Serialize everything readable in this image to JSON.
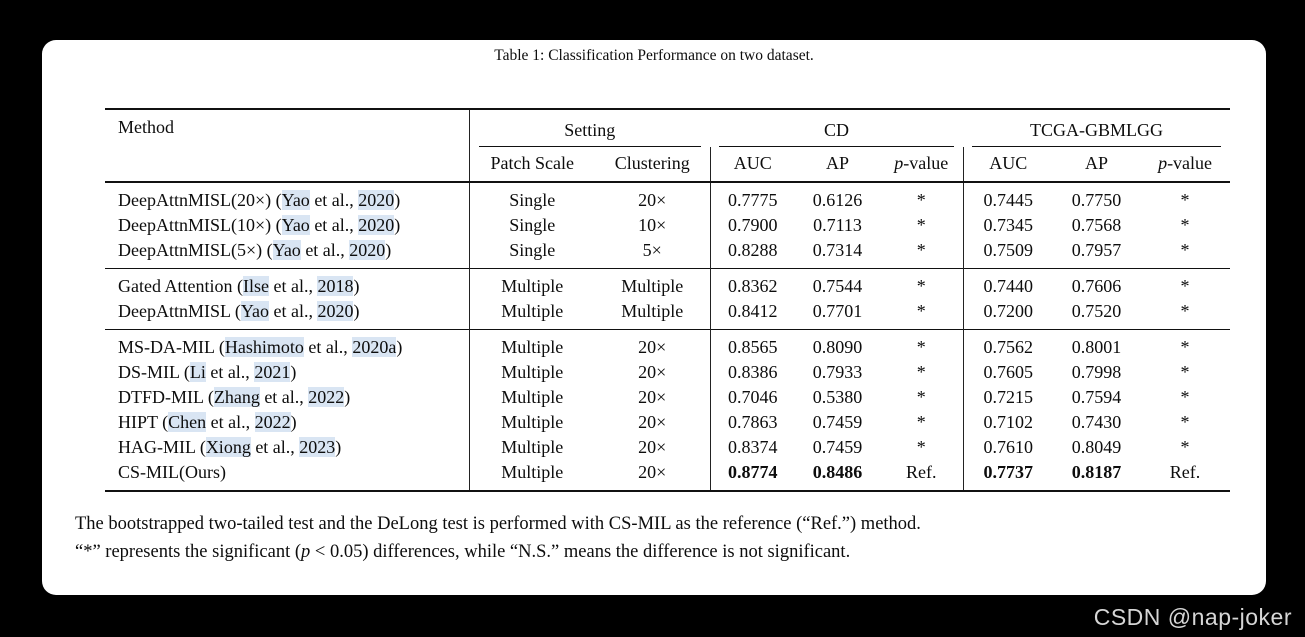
{
  "page": {
    "watermark": "CSDN @nap-joker"
  },
  "caption": "Table 1: Classification Performance on two dataset.",
  "header": {
    "method": "Method",
    "groups": [
      {
        "label": "Setting",
        "cols": [
          [
            {
              "t": "Patch Scale"
            }
          ],
          [
            {
              "t": "Clustering"
            }
          ]
        ]
      },
      {
        "label": "CD",
        "cols": [
          [
            {
              "t": "AUC"
            }
          ],
          [
            {
              "t": "AP"
            }
          ],
          [
            {
              "t": "p",
              "i": true
            },
            {
              "t": "-value"
            }
          ]
        ]
      },
      {
        "label": "TCGA-GBMLGG",
        "cols": [
          [
            {
              "t": "AUC"
            }
          ],
          [
            {
              "t": "AP"
            }
          ],
          [
            {
              "t": "p",
              "i": true
            },
            {
              "t": "-value"
            }
          ]
        ]
      }
    ]
  },
  "groups": [
    {
      "rows": [
        {
          "method": [
            {
              "t": "DeepAttnMISL(20×) ("
            },
            {
              "t": "Yao",
              "hl": true
            },
            {
              "t": " et al., "
            },
            {
              "t": "2020",
              "hl": true
            },
            {
              "t": ")"
            }
          ],
          "cells": [
            "Single",
            "20×",
            "0.7775",
            "0.6126",
            "*",
            "0.7445",
            "0.7750",
            "*"
          ],
          "bold": []
        },
        {
          "method": [
            {
              "t": "DeepAttnMISL(10×) ("
            },
            {
              "t": "Yao",
              "hl": true
            },
            {
              "t": " et al., "
            },
            {
              "t": "2020",
              "hl": true
            },
            {
              "t": ")"
            }
          ],
          "cells": [
            "Single",
            "10×",
            "0.7900",
            "0.7113",
            "*",
            "0.7345",
            "0.7568",
            "*"
          ],
          "bold": []
        },
        {
          "method": [
            {
              "t": "DeepAttnMISL(5×) ("
            },
            {
              "t": "Yao",
              "hl": true
            },
            {
              "t": " et al., "
            },
            {
              "t": "2020",
              "hl": true
            },
            {
              "t": ")"
            }
          ],
          "cells": [
            "Single",
            "5×",
            "0.8288",
            "0.7314",
            "*",
            "0.7509",
            "0.7957",
            "*"
          ],
          "bold": []
        }
      ]
    },
    {
      "rows": [
        {
          "method": [
            {
              "t": "Gated Attention ("
            },
            {
              "t": "Ilse",
              "hl": true
            },
            {
              "t": " et al., "
            },
            {
              "t": "2018",
              "hl": true
            },
            {
              "t": ")"
            }
          ],
          "cells": [
            "Multiple",
            "Multiple",
            "0.8362",
            "0.7544",
            "*",
            "0.7440",
            "0.7606",
            "*"
          ],
          "bold": []
        },
        {
          "method": [
            {
              "t": "DeepAttnMISL ("
            },
            {
              "t": "Yao",
              "hl": true
            },
            {
              "t": " et al., "
            },
            {
              "t": "2020",
              "hl": true
            },
            {
              "t": ")"
            }
          ],
          "cells": [
            "Multiple",
            "Multiple",
            "0.8412",
            "0.7701",
            "*",
            "0.7200",
            "0.7520",
            "*"
          ],
          "bold": []
        }
      ]
    },
    {
      "rows": [
        {
          "method": [
            {
              "t": "MS-DA-MIL ("
            },
            {
              "t": "Hashimoto",
              "hl": true
            },
            {
              "t": " et al., "
            },
            {
              "t": "2020a",
              "hl": true
            },
            {
              "t": ")"
            }
          ],
          "cells": [
            "Multiple",
            "20×",
            "0.8565",
            "0.8090",
            "*",
            "0.7562",
            "0.8001",
            "*"
          ],
          "bold": []
        },
        {
          "method": [
            {
              "t": "DS-MIL ("
            },
            {
              "t": "Li",
              "hl": true
            },
            {
              "t": " et al., "
            },
            {
              "t": "2021",
              "hl": true
            },
            {
              "t": ")"
            }
          ],
          "cells": [
            "Multiple",
            "20×",
            "0.8386",
            "0.7933",
            "*",
            "0.7605",
            "0.7998",
            "*"
          ],
          "bold": []
        },
        {
          "method": [
            {
              "t": "DTFD-MIL ("
            },
            {
              "t": "Zhang",
              "hl": true
            },
            {
              "t": " et al., "
            },
            {
              "t": "2022",
              "hl": true
            },
            {
              "t": ")"
            }
          ],
          "cells": [
            "Multiple",
            "20×",
            "0.7046",
            "0.5380",
            "*",
            "0.7215",
            "0.7594",
            "*"
          ],
          "bold": []
        },
        {
          "method": [
            {
              "t": "HIPT ("
            },
            {
              "t": "Chen",
              "hl": true
            },
            {
              "t": " et al., "
            },
            {
              "t": "2022",
              "hl": true
            },
            {
              "t": ")"
            }
          ],
          "cells": [
            "Multiple",
            "20×",
            "0.7863",
            "0.7459",
            "*",
            "0.7102",
            "0.7430",
            "*"
          ],
          "bold": []
        },
        {
          "method": [
            {
              "t": "HAG-MIL ("
            },
            {
              "t": "Xiong",
              "hl": true
            },
            {
              "t": " et al., "
            },
            {
              "t": "2023",
              "hl": true
            },
            {
              "t": ")"
            }
          ],
          "cells": [
            "Multiple",
            "20×",
            "0.8374",
            "0.7459",
            "*",
            "0.7610",
            "0.8049",
            "*"
          ],
          "bold": []
        },
        {
          "method": [
            {
              "t": "CS-MIL(Ours)"
            }
          ],
          "cells": [
            "Multiple",
            "20×",
            "0.8774",
            "0.8486",
            "Ref.",
            "0.7737",
            "0.8187",
            "Ref."
          ],
          "bold": [
            2,
            3,
            5,
            6
          ]
        }
      ]
    }
  ],
  "notes": [
    [
      {
        "t": "The bootstrapped two-tailed test and the DeLong test is performed with CS-MIL as the reference (“Ref.”) method."
      }
    ],
    [
      {
        "t": "“*” represents the significant ("
      },
      {
        "t": "p",
        "i": true
      },
      {
        "t": " < 0.05) differences, while “N.S.” means the difference is not significant."
      }
    ]
  ],
  "colors": {
    "page_bg": "#000000",
    "card_bg": "#ffffff",
    "rule": "#111111",
    "cite_highlight": "#d9e5f3",
    "watermark_text": "#d6d6d6"
  }
}
